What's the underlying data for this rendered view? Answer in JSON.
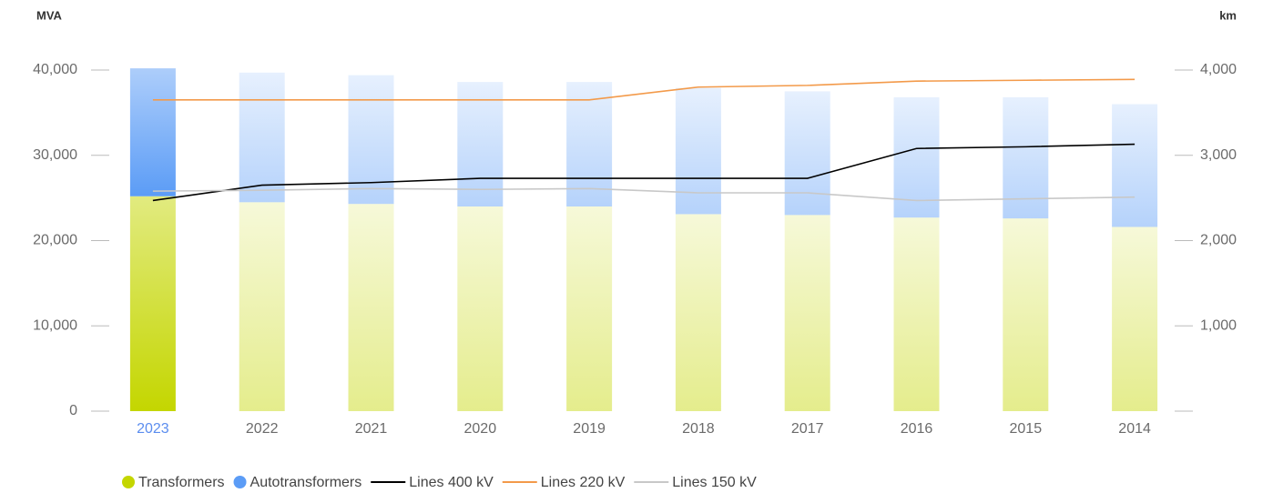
{
  "chart_data": {
    "type": "bar",
    "y_label": "MVA",
    "y2_label": "km",
    "categories": [
      "2023",
      "2022",
      "2021",
      "2020",
      "2019",
      "2018",
      "2017",
      "2016",
      "2015",
      "2014"
    ],
    "selected_category": "2023",
    "stacked": true,
    "series": [
      {
        "name": "Transformers",
        "type": "bar",
        "color": "#c4d600",
        "values": [
          25200,
          24500,
          24300,
          24000,
          24000,
          23100,
          23000,
          22700,
          22600,
          21600
        ]
      },
      {
        "name": "Autotransformers",
        "type": "bar",
        "color": "#5b9cf6",
        "values": [
          15000,
          15200,
          15100,
          14600,
          14600,
          14800,
          14500,
          14100,
          14200,
          14400
        ]
      },
      {
        "name": "Lines 400 kV",
        "type": "line",
        "axis": "y2",
        "color": "#000000",
        "values": [
          2470,
          2650,
          2680,
          2730,
          2730,
          2730,
          2730,
          3080,
          3100,
          3130
        ]
      },
      {
        "name": "Lines 220 kV",
        "type": "line",
        "axis": "y2",
        "color": "#f39a4a",
        "values": [
          3650,
          3650,
          3650,
          3650,
          3650,
          3800,
          3820,
          3870,
          3880,
          3890
        ]
      },
      {
        "name": "Lines 150 kV",
        "type": "line",
        "axis": "y2",
        "color": "#c8c8c8",
        "values": [
          2580,
          2590,
          2610,
          2600,
          2610,
          2560,
          2560,
          2470,
          2490,
          2510
        ]
      }
    ],
    "ylim": [
      0,
      40000
    ],
    "yticks": [
      0,
      {
        "value": 10000,
        "label": "10,000"
      },
      {
        "value": 20000,
        "label": "20,000"
      },
      {
        "value": 30000,
        "label": "30,000"
      },
      {
        "value": 40000,
        "label": "40,000"
      }
    ],
    "y2lim": [
      0,
      4000
    ],
    "y2ticks": [
      {
        "value": 1000,
        "label": "1,000"
      },
      {
        "value": 2000,
        "label": "2,000"
      },
      {
        "value": 3000,
        "label": "3,000"
      },
      {
        "value": 4000,
        "label": "4,000"
      }
    ],
    "y2_zero_tick": true,
    "legend": "bottom"
  }
}
